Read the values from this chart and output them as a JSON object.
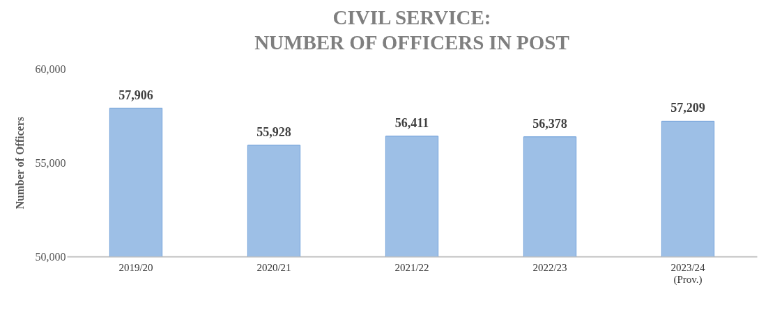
{
  "chart_data": {
    "type": "bar",
    "title": "CIVIL SERVICE:\nNUMBER OF OFFICERS IN POST",
    "ylabel": "Number of Officers",
    "categories": [
      "2019/20",
      "2020/21",
      "2021/22",
      "2022/23",
      "2023/24\n(Prov.)"
    ],
    "values": [
      57906,
      55928,
      56411,
      56378,
      57209
    ],
    "color": "#9dbfe6",
    "ylim": [
      50000,
      60000
    ],
    "yticks": [
      {
        "value": 50000,
        "label": "50,000"
      },
      {
        "value": 55000,
        "label": "55,000"
      },
      {
        "value": 60000,
        "label": "60,000"
      }
    ],
    "value_labels": [
      "57,906",
      "55,928",
      "56,411",
      "56,378",
      "57,209"
    ],
    "grid": false
  }
}
